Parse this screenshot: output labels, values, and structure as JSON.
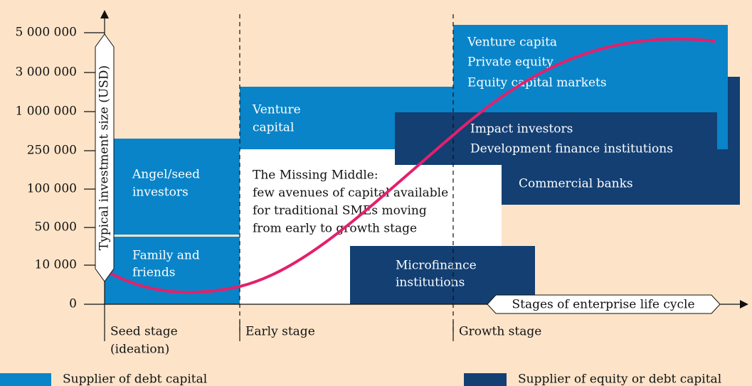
{
  "y_axis": {
    "title": "Typical investment size (USD)",
    "ticks": [
      "5 000 000",
      "3 000 000",
      "1 000 000",
      "250 000",
      "100 000",
      "50 000",
      "10 000",
      "0"
    ]
  },
  "x_axis": {
    "title": "Stages of enterprise life cycle",
    "stages": [
      {
        "lines": [
          "Seed stage",
          "(ideation)"
        ]
      },
      {
        "lines": [
          "Early stage"
        ]
      },
      {
        "lines": [
          "Growth stage"
        ]
      }
    ]
  },
  "boxes": [
    {
      "lines": [
        "Family and",
        "friends"
      ]
    },
    {
      "lines": [
        "Angel/seed",
        "investors"
      ]
    },
    {
      "lines": [
        "Venture",
        "capital"
      ]
    },
    {
      "lines": [
        "The Missing Middle:",
        "few avenues of capital available",
        "for traditional SMEs moving",
        "from early to growth stage"
      ]
    },
    {
      "lines": [
        "Commercial banks"
      ]
    },
    {
      "lines": [
        "Venture capita",
        "Private equity",
        "Equity capital markets"
      ]
    },
    {
      "lines": [
        "Impact investors",
        "Development finance institutions"
      ]
    },
    {
      "lines": [
        "Microfinance",
        "institutions"
      ]
    }
  ],
  "legend": [
    {
      "label": "Supplier of debt capital"
    },
    {
      "label": "Supplier of equity or debt capital"
    }
  ]
}
